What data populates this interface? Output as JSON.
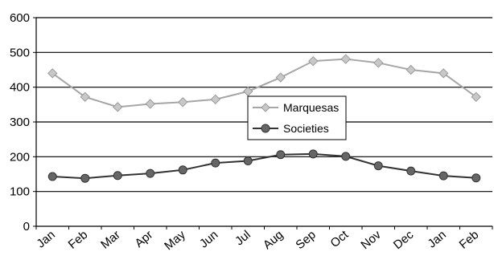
{
  "chart_data": {
    "type": "line",
    "title": "",
    "xlabel": "",
    "ylabel": "",
    "categories": [
      "Jan",
      "Feb",
      "Mar",
      "Apr",
      "May",
      "Jun",
      "Jul",
      "Aug",
      "Sep",
      "Oct",
      "Nov",
      "Dec",
      "Jan",
      "Feb"
    ],
    "ylim": [
      0,
      600
    ],
    "yticks": [
      "0",
      "100",
      "200",
      "300",
      "400",
      "500",
      "600"
    ],
    "grid": "horizontal",
    "legend_position": "center-right",
    "series": [
      {
        "name": "Marquesas",
        "marker": "diamond",
        "color": "#a6a6a6",
        "marker_color": "#c8c8c8",
        "values": [
          440,
          372,
          343,
          352,
          357,
          365,
          388,
          428,
          475,
          481,
          470,
          450,
          440,
          372
        ]
      },
      {
        "name": "Societies",
        "marker": "circle",
        "color": "#333333",
        "marker_color": "#666666",
        "values": [
          143,
          138,
          146,
          152,
          162,
          182,
          188,
          206,
          208,
          201,
          174,
          159,
          145,
          139
        ]
      }
    ]
  }
}
